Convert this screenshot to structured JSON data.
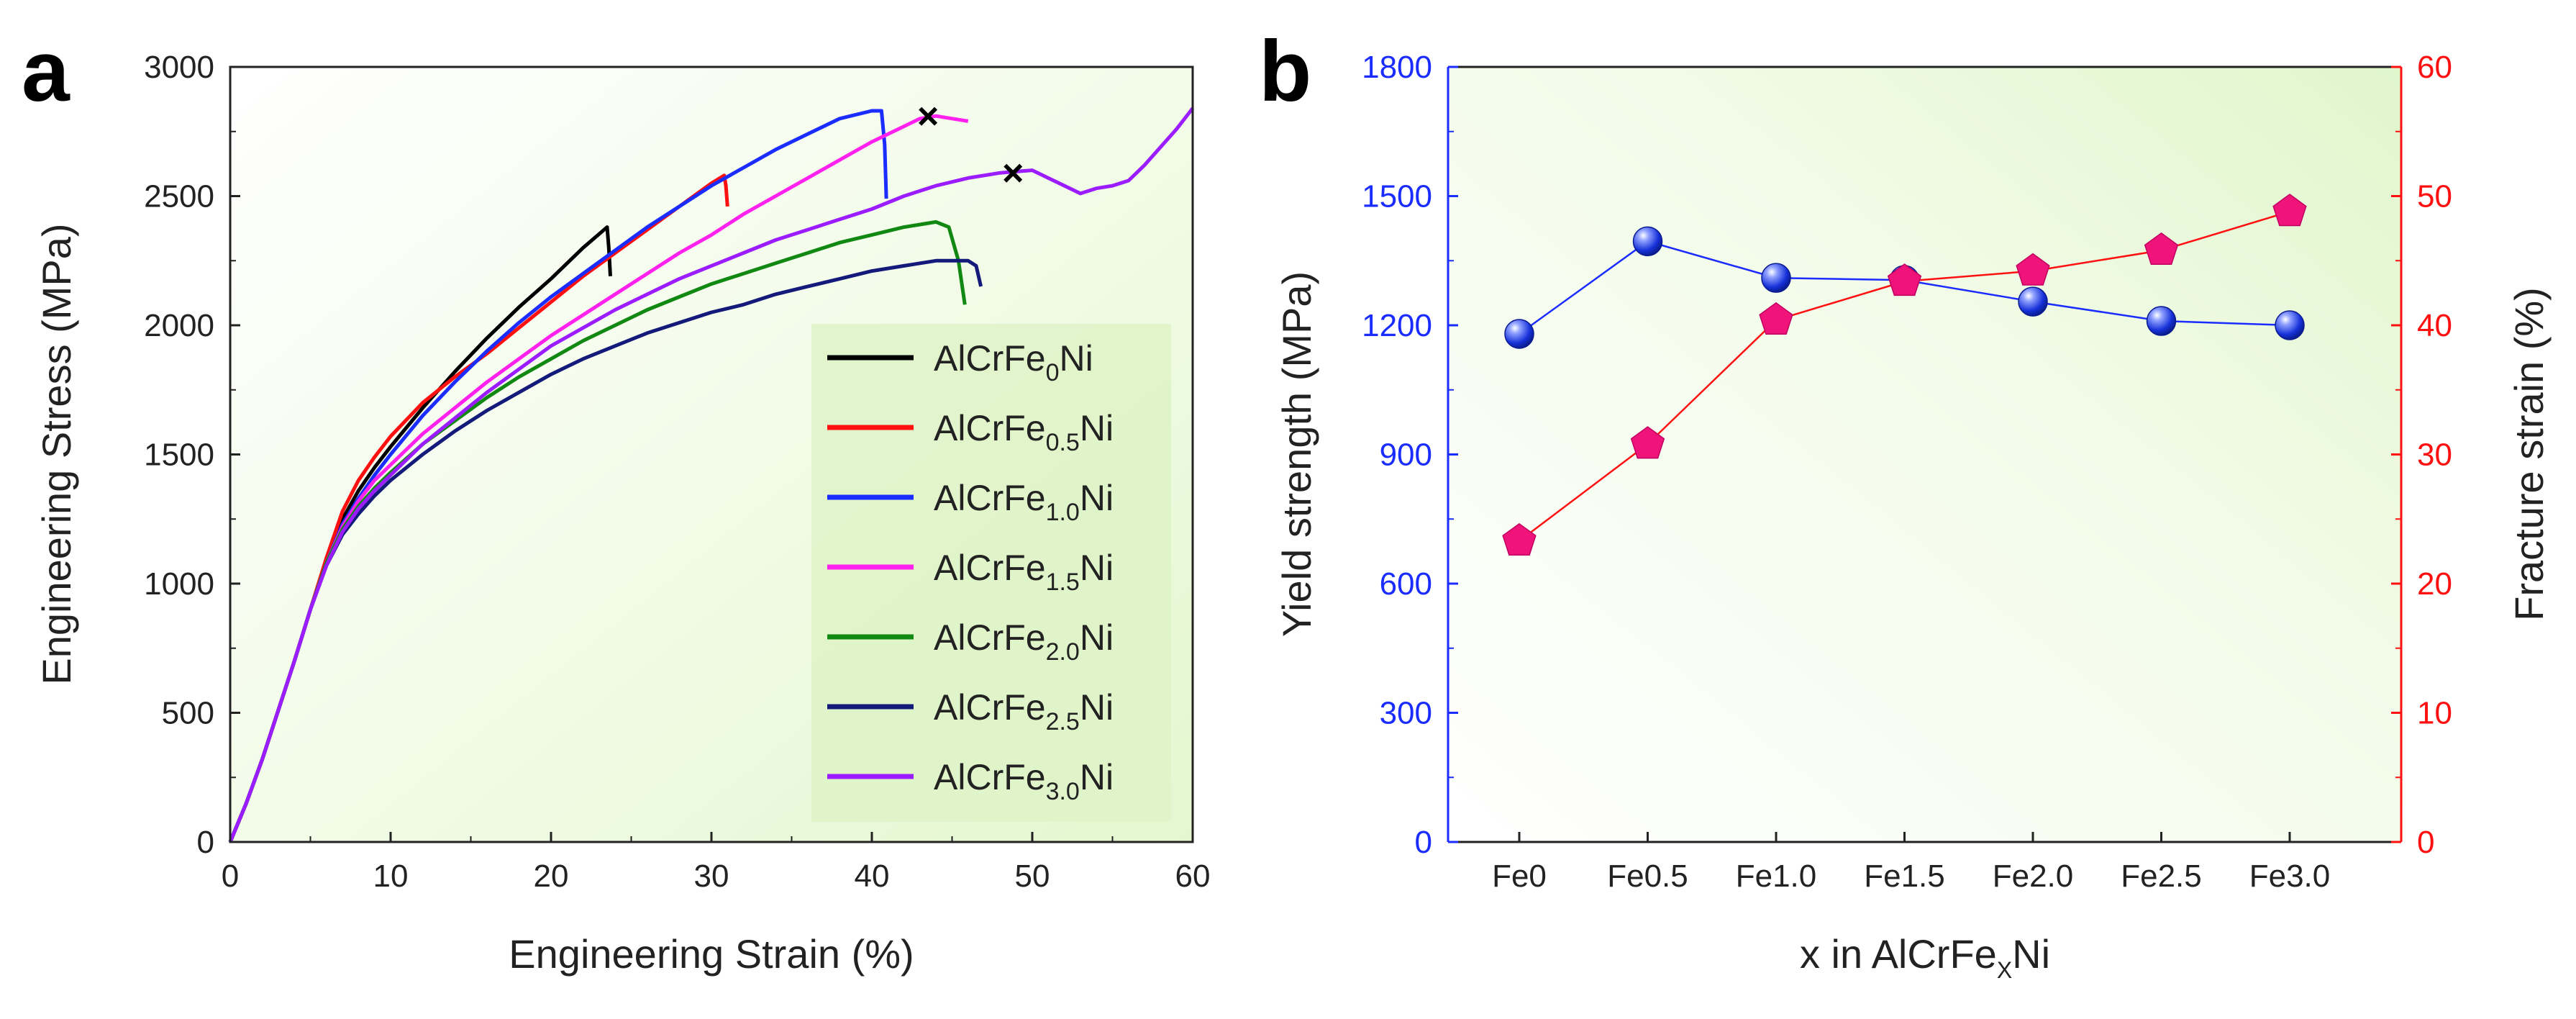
{
  "chart_data": [
    {
      "panel": "a",
      "type": "line",
      "xlabel": "Engineering Strain (%)",
      "ylabel": "Engineering Stress (MPa)",
      "xlim": [
        0,
        60
      ],
      "ylim": [
        0,
        3000
      ],
      "xticks": [
        "0",
        "10",
        "20",
        "30",
        "40",
        "50",
        "60"
      ],
      "yticks": [
        "0",
        "500",
        "1000",
        "1500",
        "2000",
        "2500",
        "3000"
      ],
      "legend_position": "right-middle",
      "series": [
        {
          "name": "AlCrFe0Ni",
          "base": "AlCrFe",
          "sub": "0",
          "suffix": "Ni",
          "color": "#000000",
          "x": [
            0,
            1,
            2,
            3,
            4,
            5,
            6,
            7,
            8,
            9,
            10,
            12,
            14,
            16,
            18,
            20,
            22,
            23.5,
            23.6,
            23.7
          ],
          "y": [
            0,
            150,
            320,
            510,
            700,
            900,
            1090,
            1250,
            1360,
            1450,
            1530,
            1680,
            1820,
            1950,
            2070,
            2180,
            2300,
            2380,
            2300,
            2190
          ]
        },
        {
          "name": "AlCrFe0.5Ni",
          "base": "AlCrFe",
          "sub": "0.5",
          "suffix": "Ni",
          "color": "#ff1010",
          "x": [
            0,
            1,
            2,
            3,
            4,
            5,
            6,
            7,
            8,
            9,
            10,
            12,
            14,
            16,
            18,
            20,
            22,
            24,
            26,
            28,
            30,
            30.8,
            30.9,
            31
          ],
          "y": [
            0,
            150,
            320,
            510,
            700,
            900,
            1100,
            1280,
            1400,
            1490,
            1570,
            1700,
            1800,
            1890,
            1990,
            2090,
            2190,
            2280,
            2370,
            2460,
            2550,
            2580,
            2540,
            2460
          ]
        },
        {
          "name": "AlCrFe1.0Ni",
          "base": "AlCrFe",
          "sub": "1.0",
          "suffix": "Ni",
          "color": "#1a2cff",
          "x": [
            0,
            1,
            2,
            3,
            4,
            5,
            6,
            7,
            8,
            9,
            10,
            12,
            14,
            16,
            18,
            20,
            22,
            24,
            26,
            28,
            30,
            32,
            34,
            36,
            38,
            40,
            40.6,
            40.8,
            40.9
          ],
          "y": [
            0,
            150,
            320,
            510,
            700,
            900,
            1080,
            1230,
            1330,
            1420,
            1500,
            1650,
            1780,
            1900,
            2010,
            2110,
            2200,
            2290,
            2380,
            2460,
            2540,
            2610,
            2680,
            2740,
            2800,
            2830,
            2830,
            2700,
            2490
          ]
        },
        {
          "name": "AlCrFe1.5Ni",
          "base": "AlCrFe",
          "sub": "1.5",
          "suffix": "Ni",
          "color": "#ff22ee",
          "x": [
            0,
            1,
            2,
            3,
            4,
            5,
            6,
            7,
            8,
            9,
            10,
            12,
            14,
            16,
            18,
            20,
            22,
            24,
            26,
            28,
            30,
            32,
            34,
            36,
            38,
            40,
            42,
            43,
            44,
            45,
            46
          ],
          "y": [
            0,
            150,
            320,
            510,
            700,
            900,
            1080,
            1220,
            1320,
            1400,
            1460,
            1580,
            1680,
            1780,
            1870,
            1960,
            2040,
            2120,
            2200,
            2280,
            2350,
            2430,
            2500,
            2570,
            2640,
            2710,
            2770,
            2800,
            2810,
            2800,
            2790
          ]
        },
        {
          "name": "AlCrFe2.0Ni",
          "base": "AlCrFe",
          "sub": "2.0",
          "suffix": "Ni",
          "color": "#118811",
          "x": [
            0,
            1,
            2,
            3,
            4,
            5,
            6,
            7,
            8,
            9,
            10,
            12,
            14,
            16,
            18,
            20,
            22,
            24,
            26,
            28,
            30,
            32,
            34,
            36,
            38,
            40,
            42,
            44,
            44.8,
            45.4,
            45.8
          ],
          "y": [
            0,
            150,
            320,
            510,
            700,
            900,
            1080,
            1210,
            1300,
            1370,
            1430,
            1540,
            1630,
            1720,
            1800,
            1870,
            1940,
            2000,
            2060,
            2110,
            2160,
            2200,
            2240,
            2280,
            2320,
            2350,
            2380,
            2400,
            2380,
            2250,
            2080
          ]
        },
        {
          "name": "AlCrFe2.5Ni",
          "base": "AlCrFe",
          "sub": "2.5",
          "suffix": "Ni",
          "color": "#141a7a",
          "x": [
            0,
            1,
            2,
            3,
            4,
            5,
            6,
            7,
            8,
            9,
            10,
            12,
            14,
            16,
            18,
            20,
            22,
            24,
            26,
            28,
            30,
            32,
            34,
            36,
            38,
            40,
            42,
            44,
            45,
            46,
            46.5,
            46.8
          ],
          "y": [
            0,
            150,
            320,
            510,
            700,
            900,
            1070,
            1190,
            1270,
            1340,
            1400,
            1500,
            1590,
            1670,
            1740,
            1810,
            1870,
            1920,
            1970,
            2010,
            2050,
            2080,
            2120,
            2150,
            2180,
            2210,
            2230,
            2250,
            2250,
            2250,
            2230,
            2150
          ]
        },
        {
          "name": "AlCrFe3.0Ni",
          "base": "AlCrFe",
          "sub": "3.0",
          "suffix": "Ni",
          "color": "#9b1cff",
          "x": [
            0,
            1,
            2,
            3,
            4,
            5,
            6,
            7,
            8,
            9,
            10,
            12,
            14,
            16,
            18,
            20,
            22,
            24,
            26,
            28,
            30,
            32,
            34,
            36,
            38,
            40,
            42,
            44,
            46,
            48,
            50,
            51,
            52,
            53,
            54,
            55,
            56,
            57,
            58,
            59,
            60
          ],
          "y": [
            0,
            150,
            320,
            510,
            700,
            900,
            1070,
            1200,
            1290,
            1360,
            1420,
            1540,
            1640,
            1740,
            1830,
            1920,
            1990,
            2060,
            2120,
            2180,
            2230,
            2280,
            2330,
            2370,
            2410,
            2450,
            2500,
            2540,
            2570,
            2590,
            2600,
            2570,
            2540,
            2510,
            2530,
            2540,
            2560,
            2620,
            2690,
            2760,
            2840
          ]
        }
      ],
      "fracture_markers": [
        {
          "label": "×",
          "x": 43.5,
          "y": 2805
        },
        {
          "label": "×",
          "x": 48.8,
          "y": 2585
        }
      ]
    },
    {
      "panel": "b",
      "type": "line",
      "xlabel_base": "x in AlCrFe",
      "xlabel_sub": "X",
      "xlabel_suffix": "Ni",
      "categories": [
        "Fe0",
        "Fe0.5",
        "Fe1.0",
        "Fe1.5",
        "Fe2.0",
        "Fe2.5",
        "Fe3.0"
      ],
      "series": [
        {
          "name": "Yield strength (MPa)",
          "axis": "left",
          "color": "#1a2cff",
          "marker": "sphere",
          "values": [
            1180,
            1395,
            1310,
            1305,
            1255,
            1210,
            1200
          ]
        },
        {
          "name": "Fracture strain (%)",
          "axis": "right",
          "color": "#ff1010",
          "marker": "pentagon",
          "marker_color": "#f0147a",
          "values": [
            23.3,
            30.8,
            40.4,
            43.4,
            44.2,
            45.8,
            48.8
          ]
        }
      ],
      "ylabel_left": "Yield strength (MPa)",
      "ylabel_right": "Fracture strain (%)",
      "ylim_left": [
        0,
        1800
      ],
      "ylim_right": [
        0,
        60
      ],
      "yticks_left": [
        "0",
        "300",
        "600",
        "900",
        "1200",
        "1500",
        "1800"
      ],
      "yticks_right": [
        "0",
        "10",
        "20",
        "30",
        "40",
        "50",
        "60"
      ],
      "left_axis_color": "#1a2cff",
      "right_axis_color": "#ff1010"
    }
  ],
  "panel_labels": {
    "a": "a",
    "b": "b"
  }
}
